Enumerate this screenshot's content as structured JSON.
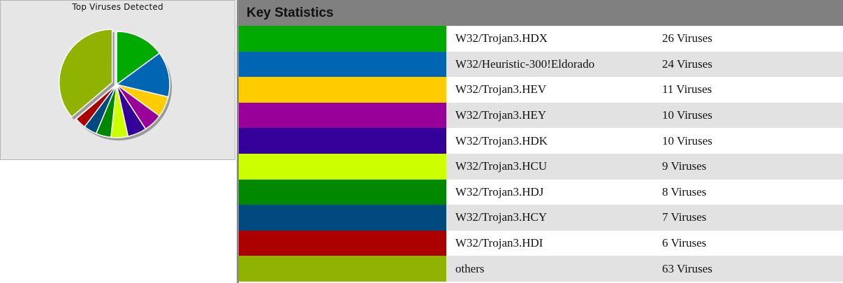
{
  "chart_data": {
    "type": "pie",
    "title": "Top Viruses Detected",
    "slices": [
      {
        "label": "W32/Trojan3.HDX",
        "value": 26,
        "color": "#00aa00"
      },
      {
        "label": "W32/Heuristic-300!Eldorado",
        "value": 24,
        "color": "#0066b4"
      },
      {
        "label": "W32/Trojan3.HEV",
        "value": 11,
        "color": "#ffcc00"
      },
      {
        "label": "W32/Trojan3.HEY",
        "value": 10,
        "color": "#990099"
      },
      {
        "label": "W32/Trojan3.HDK",
        "value": 10,
        "color": "#330099"
      },
      {
        "label": "W32/Trojan3.HCU",
        "value": 9,
        "color": "#ccff00"
      },
      {
        "label": "W32/Trojan3.HDJ",
        "value": 8,
        "color": "#008800"
      },
      {
        "label": "W32/Trojan3.HCY",
        "value": 7,
        "color": "#004a80"
      },
      {
        "label": "W32/Trojan3.HDI",
        "value": 6,
        "color": "#aa0000"
      },
      {
        "label": "others",
        "value": 63,
        "color": "#8fb300"
      }
    ],
    "exploded": "others"
  },
  "stats": {
    "header": "Key Statistics",
    "rows": [
      {
        "name": "W32/Trojan3.HDX",
        "count": "26 Viruses",
        "color": "#00aa00"
      },
      {
        "name": "W32/Heuristic-300!Eldorado",
        "count": "24 Viruses",
        "color": "#0066b4"
      },
      {
        "name": "W32/Trojan3.HEV",
        "count": "11 Viruses",
        "color": "#ffcc00"
      },
      {
        "name": "W32/Trojan3.HEY",
        "count": "10 Viruses",
        "color": "#990099"
      },
      {
        "name": "W32/Trojan3.HDK",
        "count": "10 Viruses",
        "color": "#330099"
      },
      {
        "name": "W32/Trojan3.HCU",
        "count": "9 Viruses",
        "color": "#ccff00"
      },
      {
        "name": "W32/Trojan3.HDJ",
        "count": "8 Viruses",
        "color": "#008800"
      },
      {
        "name": "W32/Trojan3.HCY",
        "count": "7 Viruses",
        "color": "#004a80"
      },
      {
        "name": "W32/Trojan3.HDI",
        "count": "6 Viruses",
        "color": "#aa0000"
      },
      {
        "name": "others",
        "count": "63 Viruses",
        "color": "#8fb300"
      }
    ]
  }
}
